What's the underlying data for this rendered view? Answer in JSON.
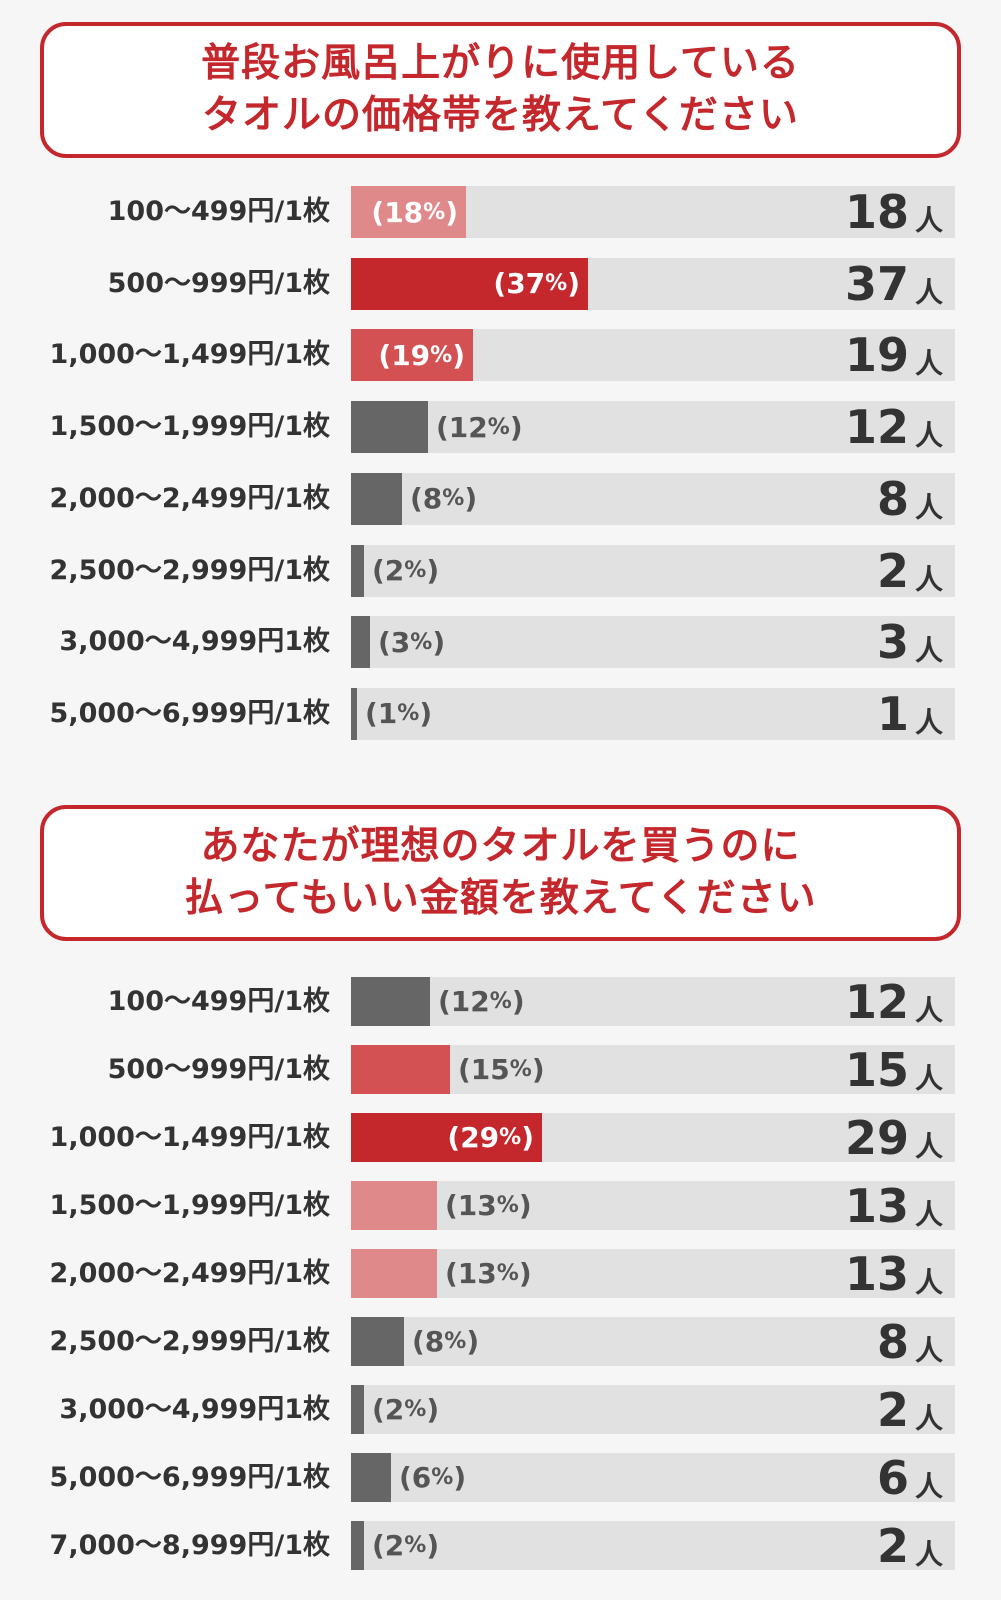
{
  "colors": {
    "accent": "#c4282c",
    "bar_top": "#c4282c",
    "bar_second": "#d35152",
    "bar_third": "#e0898a",
    "bar_other": "#666666",
    "track": "#e1e1e1"
  },
  "chart_data": [
    {
      "type": "bar",
      "orientation": "horizontal",
      "title_lines": [
        "普段お風呂上がりに使用している",
        "タオルの価格帯を教えてください"
      ],
      "categories": [
        "100〜499円/1枚",
        "500〜999円/1枚",
        "1,000〜1,499円/1枚",
        "1,500〜1,999円/1枚",
        "2,000〜2,499円/1枚",
        "2,500〜2,999円/1枚",
        "3,000〜4,999円1枚",
        "5,000〜6,999円/1枚"
      ],
      "values": [
        18,
        37,
        19,
        12,
        8,
        2,
        3,
        1
      ],
      "percent_labels": [
        "18",
        "37",
        "19",
        "12",
        "8",
        "2",
        "3",
        "1"
      ],
      "percent_sign": "%",
      "unit": "人",
      "xlim": [
        0,
        100
      ],
      "color_ranks": [
        "third",
        "top",
        "second",
        "other",
        "other",
        "other",
        "other",
        "other"
      ]
    },
    {
      "type": "bar",
      "orientation": "horizontal",
      "title_lines": [
        "あなたが理想のタオルを買うのに",
        "払ってもいい金額を教えてください"
      ],
      "categories": [
        "100〜499円/1枚",
        "500〜999円/1枚",
        "1,000〜1,499円/1枚",
        "1,500〜1,999円/1枚",
        "2,000〜2,499円/1枚",
        "2,500〜2,999円/1枚",
        "3,000〜4,999円1枚",
        "5,000〜6,999円/1枚",
        "7,000〜8,999円/1枚"
      ],
      "values": [
        12,
        15,
        29,
        13,
        13,
        8,
        2,
        6,
        2
      ],
      "percent_labels": [
        "12",
        "15",
        "29",
        "13",
        "13",
        "8",
        "2",
        "6",
        "2"
      ],
      "percent_sign": "%",
      "unit": "人",
      "xlim": [
        0,
        100
      ],
      "color_ranks": [
        "other",
        "second",
        "top",
        "third",
        "third",
        "other",
        "other",
        "other",
        "other"
      ]
    }
  ]
}
